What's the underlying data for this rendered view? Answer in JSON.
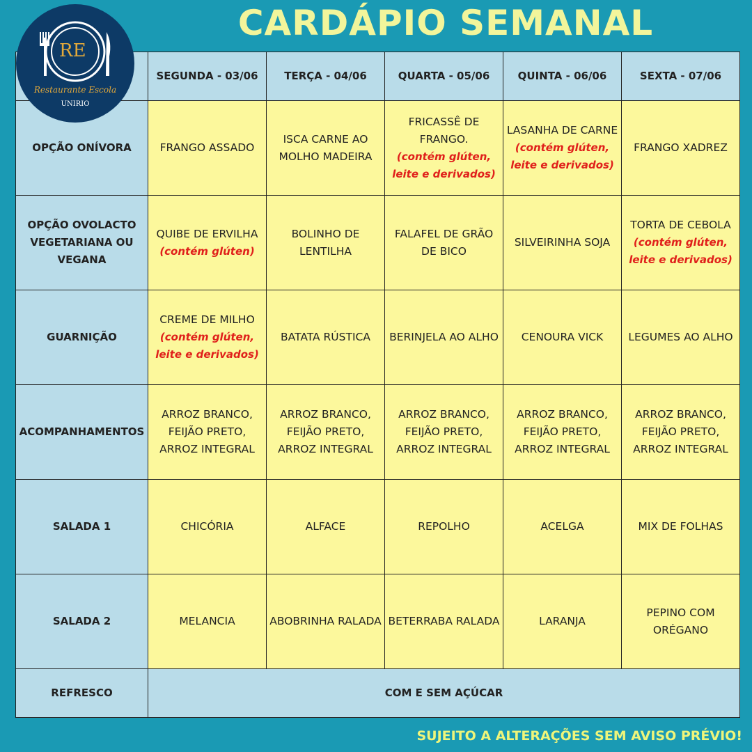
{
  "title": "CARDÁPIO SEMANAL",
  "footer": "SUJEITO A ALTERAÇÕES SEM AVISO PRÉVIO!",
  "logo": {
    "initials": "RE",
    "name": "Restaurante Escola",
    "org": "UNIRIO"
  },
  "colors": {
    "background": "#1a9ab4",
    "header_cell": "#b9dce9",
    "menu_cell": "#fcf89c",
    "allergen_note": "#e0201b",
    "title": "#f2f59b"
  },
  "days": [
    "SEGUNDA - 03/06",
    "TERÇA - 04/06",
    "QUARTA - 05/06",
    "QUINTA - 06/06",
    "SEXTA - 07/06"
  ],
  "rows": [
    {
      "label": "OPÇÃO ONÍVORA",
      "cells": [
        {
          "text": "FRANGO ASSADO"
        },
        {
          "text": "ISCA CARNE AO MOLHO MADEIRA"
        },
        {
          "text": "FRICASSÊ DE FRANGO.",
          "note": "(contém glúten, leite e derivados)"
        },
        {
          "text": "LASANHA DE CARNE",
          "note": "(contém glúten, leite e derivados)"
        },
        {
          "text": "FRANGO XADREZ"
        }
      ]
    },
    {
      "label": "OPÇÃO OVOLACTO VEGETARIANA OU VEGANA",
      "cells": [
        {
          "text": "QUIBE DE ERVILHA",
          "note": "(contém glúten)"
        },
        {
          "text": "BOLINHO DE LENTILHA"
        },
        {
          "text": "FALAFEL DE GRÃO DE BICO"
        },
        {
          "text": "SILVEIRINHA SOJA"
        },
        {
          "text": "TORTA DE CEBOLA",
          "note": "(contém glúten, leite e derivados)"
        }
      ]
    },
    {
      "label": "GUARNIÇÃO",
      "cells": [
        {
          "text": "CREME DE MILHO",
          "note": "(contém glúten, leite e derivados)"
        },
        {
          "text": "BATATA RÚSTICA"
        },
        {
          "text": "BERINJELA AO ALHO"
        },
        {
          "text": "CENOURA VICK"
        },
        {
          "text": "LEGUMES AO ALHO"
        }
      ]
    },
    {
      "label": "ACOMPANHAMENTOS",
      "cells": [
        {
          "text": "ARROZ BRANCO, FEIJÃO PRETO, ARROZ INTEGRAL"
        },
        {
          "text": "ARROZ BRANCO, FEIJÃO PRETO, ARROZ INTEGRAL"
        },
        {
          "text": "ARROZ BRANCO, FEIJÃO PRETO, ARROZ INTEGRAL"
        },
        {
          "text": "ARROZ BRANCO, FEIJÃO PRETO, ARROZ INTEGRAL"
        },
        {
          "text": "ARROZ BRANCO, FEIJÃO PRETO, ARROZ INTEGRAL"
        }
      ]
    },
    {
      "label": "SALADA 1",
      "cells": [
        {
          "text": "CHICÓRIA"
        },
        {
          "text": "ALFACE"
        },
        {
          "text": "REPOLHO"
        },
        {
          "text": "ACELGA"
        },
        {
          "text": "MIX DE FOLHAS"
        }
      ]
    },
    {
      "label": "SALADA 2",
      "cells": [
        {
          "text": "MELANCIA"
        },
        {
          "text": "ABOBRINHA RALADA"
        },
        {
          "text": "BETERRABA RALADA"
        },
        {
          "text": "LARANJA"
        },
        {
          "text": "PEPINO COM ORÉGANO"
        }
      ]
    }
  ],
  "refresco": {
    "label": "REFRESCO",
    "value": "COM E SEM AÇÚCAR"
  }
}
